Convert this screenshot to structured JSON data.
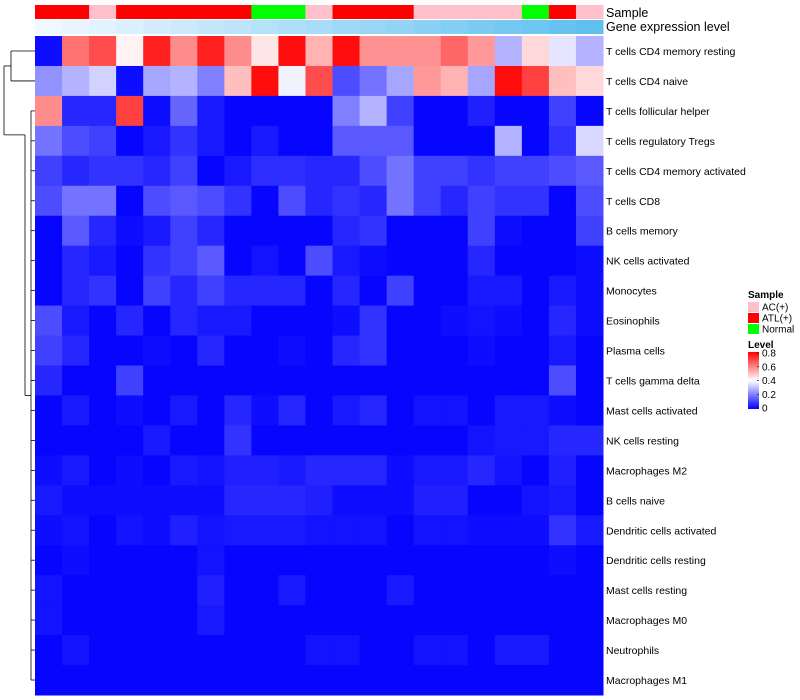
{
  "chart_data": {
    "type": "heatmap",
    "annotations": {
      "sample_label": "Sample",
      "gene_label": "Gene expression level"
    },
    "samples": [
      "ATL(+)",
      "ATL(+)",
      "AC(+)",
      "ATL(+)",
      "ATL(+)",
      "ATL(+)",
      "ATL(+)",
      "ATL(+)",
      "Normal",
      "Normal",
      "AC(+)",
      "ATL(+)",
      "ATL(+)",
      "ATL(+)",
      "AC(+)",
      "AC(+)",
      "AC(+)",
      "AC(+)",
      "Normal",
      "ATL(+)",
      "AC(+)"
    ],
    "gene_expression": [
      0.0,
      0.05,
      0.1,
      0.15,
      0.2,
      0.25,
      0.3,
      0.35,
      0.4,
      0.45,
      0.5,
      0.55,
      0.6,
      0.65,
      0.7,
      0.75,
      0.8,
      0.85,
      0.9,
      0.95,
      1.0
    ],
    "rows": [
      "T cells CD4 memory resting",
      "T cells CD4 naive",
      "T cells follicular helper",
      "T cells regulatory  Tregs",
      "T cells CD4 memory activated",
      "T cells CD8",
      "B cells memory",
      "NK cells activated",
      "Monocytes",
      "Eosinophils",
      "Plasma cells",
      "T cells gamma delta",
      "Mast cells activated",
      "NK cells resting",
      "Macrophages M2",
      "B cells naive",
      "Dendritic cells activated",
      "Dendritic cells resting",
      "Mast cells resting",
      "Macrophages M0",
      "Neutrophils",
      "Macrophages M1"
    ],
    "values": [
      [
        0.02,
        0.62,
        0.68,
        0.42,
        0.75,
        0.58,
        0.75,
        0.58,
        0.44,
        0.78,
        0.52,
        0.78,
        0.57,
        0.57,
        0.57,
        0.64,
        0.56,
        0.28,
        0.46,
        0.36,
        0.28
      ],
      [
        0.23,
        0.28,
        0.33,
        0.02,
        0.26,
        0.28,
        0.2,
        0.5,
        0.78,
        0.38,
        0.68,
        0.12,
        0.18,
        0.26,
        0.56,
        0.52,
        0.26,
        0.78,
        0.7,
        0.5,
        0.46
      ],
      [
        0.58,
        0.06,
        0.06,
        0.7,
        0.02,
        0.16,
        0.04,
        0.01,
        0.01,
        0.01,
        0.01,
        0.2,
        0.28,
        0.1,
        0.01,
        0.01,
        0.05,
        0.01,
        0.01,
        0.1,
        0.01
      ],
      [
        0.18,
        0.12,
        0.1,
        0.01,
        0.04,
        0.08,
        0.04,
        0.01,
        0.04,
        0.01,
        0.01,
        0.14,
        0.14,
        0.14,
        0.01,
        0.01,
        0.01,
        0.28,
        0.01,
        0.08,
        0.34
      ],
      [
        0.1,
        0.06,
        0.08,
        0.08,
        0.06,
        0.1,
        0.01,
        0.04,
        0.07,
        0.07,
        0.06,
        0.06,
        0.12,
        0.18,
        0.1,
        0.1,
        0.08,
        0.1,
        0.1,
        0.12,
        0.14
      ],
      [
        0.12,
        0.18,
        0.18,
        0.01,
        0.12,
        0.14,
        0.12,
        0.08,
        0.01,
        0.12,
        0.06,
        0.08,
        0.06,
        0.18,
        0.1,
        0.06,
        0.1,
        0.08,
        0.08,
        0.01,
        0.12
      ],
      [
        0.01,
        0.14,
        0.06,
        0.02,
        0.04,
        0.1,
        0.06,
        0.01,
        0.01,
        0.01,
        0.01,
        0.06,
        0.08,
        0.01,
        0.01,
        0.01,
        0.1,
        0.02,
        0.01,
        0.01,
        0.1
      ],
      [
        0.01,
        0.06,
        0.04,
        0.01,
        0.08,
        0.1,
        0.14,
        0.01,
        0.03,
        0.01,
        0.12,
        0.04,
        0.02,
        0.01,
        0.01,
        0.01,
        0.06,
        0.01,
        0.01,
        0.01,
        0.02
      ],
      [
        0.01,
        0.06,
        0.08,
        0.01,
        0.1,
        0.06,
        0.1,
        0.06,
        0.06,
        0.06,
        0.01,
        0.06,
        0.01,
        0.1,
        0.01,
        0.01,
        0.04,
        0.04,
        0.01,
        0.04,
        0.02
      ],
      [
        0.12,
        0.04,
        0.01,
        0.06,
        0.01,
        0.06,
        0.04,
        0.04,
        0.01,
        0.01,
        0.01,
        0.02,
        0.08,
        0.01,
        0.01,
        0.02,
        0.03,
        0.02,
        0.01,
        0.06,
        0.02
      ],
      [
        0.1,
        0.06,
        0.01,
        0.01,
        0.02,
        0.01,
        0.06,
        0.01,
        0.01,
        0.02,
        0.01,
        0.06,
        0.08,
        0.01,
        0.01,
        0.01,
        0.02,
        0.01,
        0.01,
        0.04,
        0.01
      ],
      [
        0.06,
        0.01,
        0.01,
        0.1,
        0.01,
        0.01,
        0.01,
        0.01,
        0.01,
        0.01,
        0.01,
        0.01,
        0.01,
        0.01,
        0.01,
        0.01,
        0.01,
        0.01,
        0.01,
        0.12,
        0.01
      ],
      [
        0.01,
        0.04,
        0.01,
        0.02,
        0.01,
        0.04,
        0.01,
        0.06,
        0.02,
        0.06,
        0.01,
        0.04,
        0.06,
        0.01,
        0.03,
        0.03,
        0.01,
        0.04,
        0.04,
        0.02,
        0.01
      ],
      [
        0.01,
        0.01,
        0.01,
        0.01,
        0.04,
        0.01,
        0.01,
        0.08,
        0.01,
        0.01,
        0.01,
        0.01,
        0.01,
        0.01,
        0.01,
        0.01,
        0.03,
        0.04,
        0.04,
        0.06,
        0.06
      ],
      [
        0.02,
        0.04,
        0.01,
        0.02,
        0.01,
        0.04,
        0.03,
        0.05,
        0.05,
        0.04,
        0.06,
        0.06,
        0.06,
        0.02,
        0.04,
        0.04,
        0.06,
        0.03,
        0.01,
        0.05,
        0.01
      ],
      [
        0.04,
        0.02,
        0.02,
        0.02,
        0.02,
        0.02,
        0.02,
        0.06,
        0.06,
        0.06,
        0.05,
        0.02,
        0.02,
        0.02,
        0.05,
        0.05,
        0.01,
        0.01,
        0.03,
        0.04,
        0.01
      ],
      [
        0.02,
        0.03,
        0.01,
        0.03,
        0.02,
        0.05,
        0.03,
        0.04,
        0.04,
        0.04,
        0.03,
        0.03,
        0.03,
        0.01,
        0.03,
        0.03,
        0.02,
        0.02,
        0.02,
        0.08,
        0.04
      ],
      [
        0.01,
        0.02,
        0.01,
        0.01,
        0.01,
        0.01,
        0.03,
        0.01,
        0.01,
        0.01,
        0.01,
        0.01,
        0.01,
        0.01,
        0.01,
        0.01,
        0.01,
        0.01,
        0.01,
        0.02,
        0.01
      ],
      [
        0.03,
        0.01,
        0.01,
        0.01,
        0.01,
        0.01,
        0.05,
        0.01,
        0.01,
        0.04,
        0.01,
        0.01,
        0.01,
        0.04,
        0.01,
        0.01,
        0.01,
        0.01,
        0.01,
        0.01,
        0.01
      ],
      [
        0.03,
        0.01,
        0.01,
        0.01,
        0.01,
        0.01,
        0.04,
        0.01,
        0.01,
        0.01,
        0.01,
        0.01,
        0.01,
        0.01,
        0.01,
        0.01,
        0.01,
        0.01,
        0.01,
        0.01,
        0.01
      ],
      [
        0.01,
        0.03,
        0.01,
        0.01,
        0.01,
        0.01,
        0.01,
        0.01,
        0.01,
        0.01,
        0.03,
        0.03,
        0.01,
        0.01,
        0.03,
        0.03,
        0.01,
        0.04,
        0.04,
        0.01,
        0.01
      ],
      [
        0.01,
        0.01,
        0.01,
        0.01,
        0.01,
        0.01,
        0.01,
        0.01,
        0.01,
        0.01,
        0.01,
        0.01,
        0.01,
        0.01,
        0.01,
        0.01,
        0.01,
        0.01,
        0.01,
        0.01,
        0.01
      ]
    ],
    "sample_colors": {
      "AC(+)": "#ffc0cb",
      "ATL(+)": "#ff0000",
      "Normal": "#00ff00"
    },
    "gene_color_low": "#f0f8ff",
    "gene_color_high": "#5fc0f0",
    "legend": {
      "sample_title": "Sample",
      "sample_entries": [
        "AC(+)",
        "ATL(+)",
        "Normal"
      ],
      "level_title": "Level",
      "level_ticks": [
        "0.8",
        "0.6",
        "0.4",
        "0.2",
        "0"
      ],
      "level_tick_values": [
        0.8,
        0.6,
        0.4,
        0.2,
        0.0
      ],
      "placement": "right"
    },
    "colorscale": {
      "low": "#0000ff",
      "mid": "#ffffff",
      "high": "#ff0000",
      "range": [
        0,
        0.8
      ]
    }
  }
}
